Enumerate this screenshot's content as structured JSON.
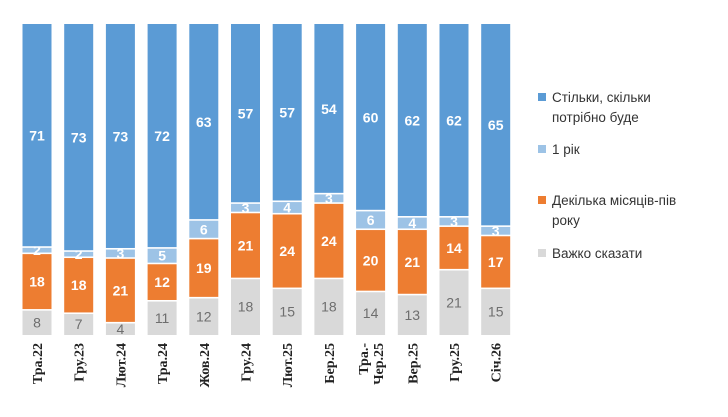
{
  "chart_data": {
    "type": "bar",
    "stacked": true,
    "title": "",
    "xlabel": "",
    "ylabel": "",
    "ylim": [
      0,
      100
    ],
    "categories": [
      "Тра.22",
      "Гру.23",
      "Лют.24",
      "Тра.24",
      "Жов.24",
      "Гру.24",
      "Лют.25",
      "Бер.25",
      "Тра.-Чер.25",
      "Вер.25",
      "Гру.25",
      "Січ.26"
    ],
    "category_lines": [
      [
        "Тра.22"
      ],
      [
        "Гру.23"
      ],
      [
        "Лют.24"
      ],
      [
        "Тра.24"
      ],
      [
        "Жов.24"
      ],
      [
        "Гру.24"
      ],
      [
        "Лют.25"
      ],
      [
        "Бер.25"
      ],
      [
        "Тра.-",
        "Чер.25"
      ],
      [
        "Вер.25"
      ],
      [
        "Гру.25"
      ],
      [
        "Січ.26"
      ]
    ],
    "series_order_bottom_to_top": [
      "Важко сказати",
      "Декілька місяців-пів року",
      "1 рік",
      "Стільки, скільки потрібно буде"
    ],
    "series": [
      {
        "name": "Стільки, скільки потрібно буде",
        "color": "#5b9bd5",
        "label_style": "light",
        "values": [
          71,
          73,
          73,
          72,
          63,
          57,
          57,
          54,
          60,
          62,
          62,
          65
        ]
      },
      {
        "name": "1 рік",
        "color": "#9dc3e6",
        "label_style": "light",
        "values": [
          2,
          2,
          3,
          5,
          6,
          3,
          4,
          3,
          6,
          4,
          3,
          3
        ]
      },
      {
        "name": "Декілька місяців-пів року",
        "color": "#ed7d31",
        "label_style": "light",
        "values": [
          18,
          18,
          21,
          12,
          19,
          21,
          24,
          24,
          20,
          21,
          14,
          17
        ]
      },
      {
        "name": "Важко сказати",
        "color": "#d9d9d9",
        "label_style": "dark",
        "values": [
          8,
          7,
          4,
          11,
          12,
          18,
          15,
          18,
          14,
          13,
          21,
          15
        ]
      }
    ],
    "legend": {
      "position": "right",
      "entries": [
        {
          "series": "Стільки, скільки потрібно буде",
          "lines": [
            "Стільки, скільки",
            "потрібно буде"
          ]
        },
        {
          "series": "1 рік",
          "lines": [
            "1 рік"
          ]
        },
        {
          "series": "Декілька місяців-пів року",
          "lines": [
            "Декілька місяців-пів",
            "року"
          ]
        },
        {
          "series": "Важко сказати",
          "lines": [
            "Важко сказати"
          ]
        }
      ]
    }
  }
}
